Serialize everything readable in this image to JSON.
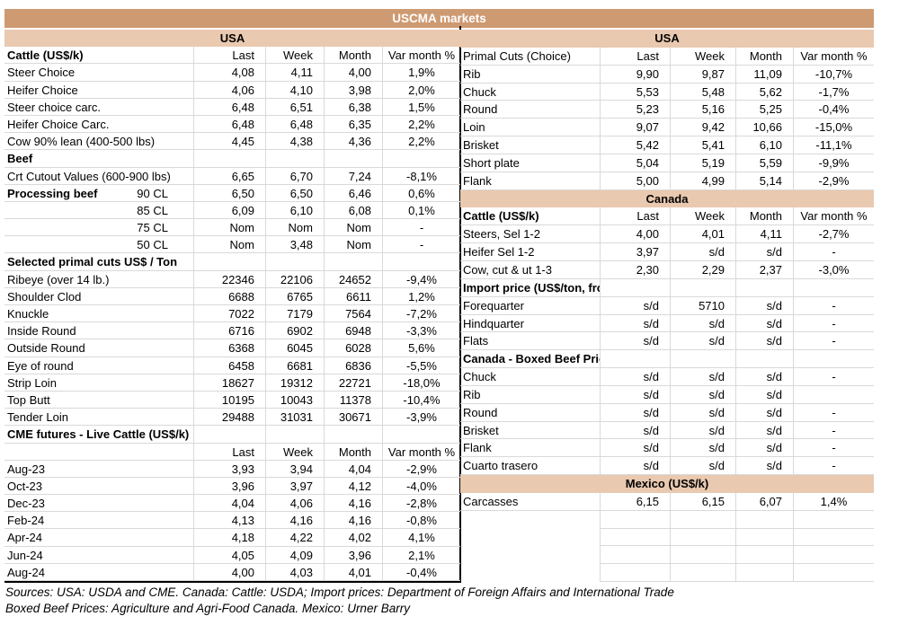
{
  "title": "USCMA markets",
  "colors": {
    "title_bg": "#CE9A72",
    "band_bg": "#E9C9B0",
    "grid": "#D9D9D9"
  },
  "columns": [
    "Last",
    "Week",
    "Month",
    "Var month %"
  ],
  "left_table": {
    "rows": [
      {
        "kind": "band",
        "label": "USA"
      },
      {
        "kind": "header",
        "label": "Cattle (US$/k)",
        "bold": true,
        "values": [
          "Last",
          "Week",
          "Month",
          "Var month %"
        ]
      },
      {
        "kind": "data",
        "label": "Steer Choice",
        "values": [
          "4,08",
          "4,11",
          "4,00",
          "1,9%"
        ]
      },
      {
        "kind": "data",
        "label": "Heifer Choice",
        "values": [
          "4,06",
          "4,10",
          "3,98",
          "2,0%"
        ]
      },
      {
        "kind": "data",
        "label": "Steer choice carc.",
        "values": [
          "6,48",
          "6,51",
          "6,38",
          "1,5%"
        ]
      },
      {
        "kind": "data",
        "label": "Heifer Choice Carc.",
        "values": [
          "6,48",
          "6,48",
          "6,35",
          "2,2%"
        ]
      },
      {
        "kind": "data",
        "label": "Cow 90% lean (400-500 lbs)",
        "values": [
          "4,45",
          "4,38",
          "4,36",
          "2,2%"
        ]
      },
      {
        "kind": "section",
        "label": "Beef"
      },
      {
        "kind": "data",
        "label": "Crt Cutout Values (600-900 lbs)",
        "values": [
          "6,65",
          "6,70",
          "7,24",
          "-8,1%"
        ]
      },
      {
        "kind": "data",
        "label": "Processing beef",
        "sub": "90 CL",
        "bold": true,
        "values": [
          "6,50",
          "6,50",
          "6,46",
          "0,6%"
        ]
      },
      {
        "kind": "data",
        "label": "",
        "sub": "85 CL",
        "values": [
          "6,09",
          "6,10",
          "6,08",
          "0,1%"
        ]
      },
      {
        "kind": "data",
        "label": "",
        "sub": "75 CL",
        "values": [
          "Nom",
          "Nom",
          "Nom",
          "-"
        ]
      },
      {
        "kind": "data",
        "label": "",
        "sub": "50 CL",
        "values": [
          "Nom",
          "3,48",
          "Nom",
          "-"
        ]
      },
      {
        "kind": "section",
        "label": "Selected primal cuts US$ / Ton"
      },
      {
        "kind": "data",
        "label": "Ribeye (over 14 lb.)",
        "values": [
          "22346",
          "22106",
          "24652",
          "-9,4%"
        ]
      },
      {
        "kind": "data",
        "label": "Shoulder Clod",
        "values": [
          "6688",
          "6765",
          "6611",
          "1,2%"
        ]
      },
      {
        "kind": "data",
        "label": "Knuckle",
        "values": [
          "7022",
          "7179",
          "7564",
          "-7,2%"
        ]
      },
      {
        "kind": "data",
        "label": "Inside Round",
        "values": [
          "6716",
          "6902",
          "6948",
          "-3,3%"
        ]
      },
      {
        "kind": "data",
        "label": "Outside Round",
        "values": [
          "6368",
          "6045",
          "6028",
          "5,6%"
        ]
      },
      {
        "kind": "data",
        "label": "Eye of round",
        "values": [
          "6458",
          "6681",
          "6836",
          "-5,5%"
        ]
      },
      {
        "kind": "data",
        "label": "Strip Loin",
        "values": [
          "18627",
          "19312",
          "22721",
          "-18,0%"
        ]
      },
      {
        "kind": "data",
        "label": "Top Butt",
        "values": [
          "10195",
          "10043",
          "11378",
          "-10,4%"
        ]
      },
      {
        "kind": "data",
        "label": "Tender Loin",
        "values": [
          "29488",
          "31031",
          "30671",
          "-3,9%"
        ]
      },
      {
        "kind": "section",
        "label": "CME futures - Live Cattle (US$/k)"
      },
      {
        "kind": "header",
        "label": "",
        "values": [
          "Last",
          "Week",
          "Month",
          "Var month %"
        ]
      },
      {
        "kind": "data",
        "label": "Aug-23",
        "values": [
          "3,93",
          "3,94",
          "4,04",
          "-2,9%"
        ]
      },
      {
        "kind": "data",
        "label": "Oct-23",
        "values": [
          "3,96",
          "3,97",
          "4,12",
          "-4,0%"
        ]
      },
      {
        "kind": "data",
        "label": "Dec-23",
        "values": [
          "4,04",
          "4,06",
          "4,16",
          "-2,8%"
        ]
      },
      {
        "kind": "data",
        "label": "Feb-24",
        "values": [
          "4,13",
          "4,16",
          "4,16",
          "-0,8%"
        ]
      },
      {
        "kind": "data",
        "label": "Apr-24",
        "values": [
          "4,18",
          "4,22",
          "4,02",
          "4,1%"
        ]
      },
      {
        "kind": "data",
        "label": "Jun-24",
        "values": [
          "4,05",
          "4,09",
          "3,96",
          "2,1%"
        ]
      },
      {
        "kind": "data",
        "label": "Aug-24",
        "values": [
          "4,00",
          "4,03",
          "4,01",
          "-0,4%"
        ]
      }
    ]
  },
  "right_table": {
    "rows": [
      {
        "kind": "band",
        "label": "USA"
      },
      {
        "kind": "header",
        "label": "Primal Cuts (Choice)",
        "values": [
          "Last",
          "Week",
          "Month",
          "Var month %"
        ]
      },
      {
        "kind": "data",
        "label": "Rib",
        "values": [
          "9,90",
          "9,87",
          "11,09",
          "-10,7%"
        ]
      },
      {
        "kind": "data",
        "label": "Chuck",
        "values": [
          "5,53",
          "5,48",
          "5,62",
          "-1,7%"
        ]
      },
      {
        "kind": "data",
        "label": "Round",
        "values": [
          "5,23",
          "5,16",
          "5,25",
          "-0,4%"
        ]
      },
      {
        "kind": "data",
        "label": "Loin",
        "values": [
          "9,07",
          "9,42",
          "10,66",
          "-15,0%"
        ]
      },
      {
        "kind": "data",
        "label": "Brisket",
        "values": [
          "5,42",
          "5,41",
          "6,10",
          "-11,1%"
        ]
      },
      {
        "kind": "data",
        "label": "Short plate",
        "values": [
          "5,04",
          "5,19",
          "5,59",
          "-9,9%"
        ]
      },
      {
        "kind": "data",
        "label": "Flank",
        "values": [
          "5,00",
          "4,99",
          "5,14",
          "-2,9%"
        ]
      },
      {
        "kind": "band",
        "label": "Canada"
      },
      {
        "kind": "header",
        "label": "Cattle (US$/k)",
        "bold": true,
        "values": [
          "Last",
          "Week",
          "Month",
          "Var month %"
        ]
      },
      {
        "kind": "data",
        "label": "Steers, Sel 1-2",
        "values": [
          "4,00",
          "4,01",
          "4,11",
          "-2,7%"
        ]
      },
      {
        "kind": "data",
        "label": "Heifer Sel 1-2",
        "values": [
          "3,97",
          "s/d",
          "s/d",
          "-"
        ]
      },
      {
        "kind": "data",
        "label": "Cow, cut & ut 1-3",
        "values": [
          "2,30",
          "2,29",
          "2,37",
          "-3,0%"
        ]
      },
      {
        "kind": "section",
        "label": "Import price (US$/ton, frozen, boneless )"
      },
      {
        "kind": "data",
        "label": "Forequarter",
        "values": [
          "s/d",
          "5710",
          "s/d",
          "-"
        ]
      },
      {
        "kind": "data",
        "label": "Hindquarter",
        "values": [
          "s/d",
          "s/d",
          "s/d",
          "-"
        ]
      },
      {
        "kind": "data",
        "label": "Flats",
        "values": [
          "s/d",
          "s/d",
          "s/d",
          "-"
        ]
      },
      {
        "kind": "section",
        "label": "Canada - Boxed Beef Prices (US$/k)"
      },
      {
        "kind": "data",
        "label": "Chuck",
        "values": [
          "s/d",
          "s/d",
          "s/d",
          "-"
        ]
      },
      {
        "kind": "data",
        "label": "Rib",
        "values": [
          "s/d",
          "s/d",
          "s/d",
          ""
        ]
      },
      {
        "kind": "data",
        "label": "Round",
        "values": [
          "s/d",
          "s/d",
          "s/d",
          "-"
        ]
      },
      {
        "kind": "data",
        "label": "Brisket",
        "values": [
          "s/d",
          "s/d",
          "s/d",
          "-"
        ]
      },
      {
        "kind": "data",
        "label": "Flank",
        "values": [
          "s/d",
          "s/d",
          "s/d",
          "-"
        ]
      },
      {
        "kind": "data",
        "label": "Cuarto trasero",
        "values": [
          "s/d",
          "s/d",
          "s/d",
          "-"
        ]
      },
      {
        "kind": "band",
        "label": "Mexico (US$/k)"
      },
      {
        "kind": "data",
        "label": "Carcasses",
        "values": [
          "6,15",
          "6,15",
          "6,07",
          "1,4%"
        ]
      },
      {
        "kind": "empty"
      },
      {
        "kind": "empty"
      },
      {
        "kind": "empty"
      },
      {
        "kind": "empty"
      }
    ]
  },
  "sources": {
    "line1": "Sources: USA: USDA and CME. Canada: Cattle: USDA; Import prices: Department of Foreign Affairs and International Trade",
    "line2": "Boxed Beef Prices: Agriculture and Agri-Food Canada. Mexico: Urner Barry"
  }
}
